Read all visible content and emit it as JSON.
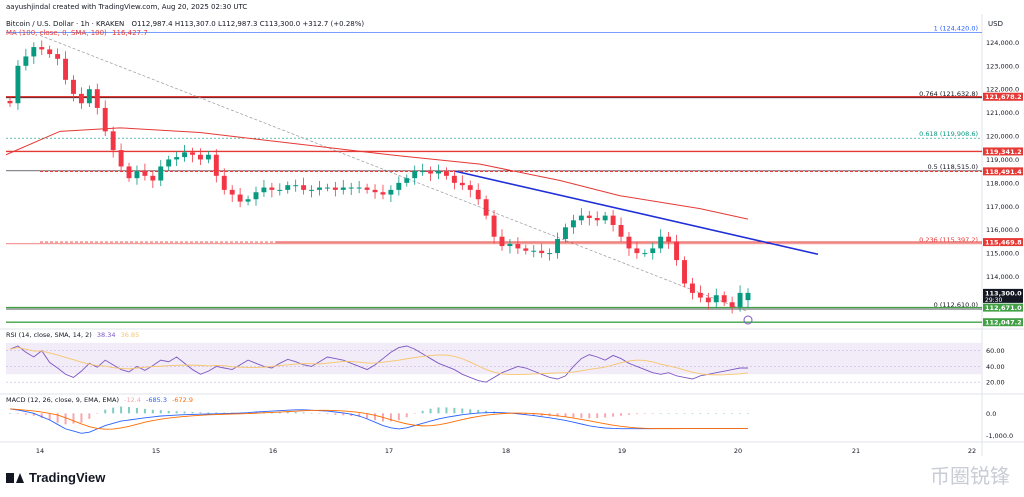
{
  "header": {
    "created_by": "aayushjindal created with TradingView.com, Aug 20, 2025 02:30 UTC",
    "symbol": "Bitcoin / U.S. Dollar · 1h · KRAKEN",
    "ohlc": "O112,987.4  H113,307.0  L112,987.3  C113,300.0  +312.7 (+0.28%)",
    "ma_label": "MA (100, close, 0, SMA, 100)",
    "ma_value": "116,427.7",
    "currency": "USD"
  },
  "indicators": {
    "rsi_label": "RSI (14, close, SMA, 14, 2)",
    "rsi_value": "38.34",
    "rsi_ma_value": "36.85",
    "macd_label": "MACD (12, 26, close, 9, EMA, EMA)",
    "macd_hist": "-12.4",
    "macd_line": "-685.3",
    "macd_signal": "-672.9"
  },
  "branding": {
    "logo_text": "TradingView",
    "watermark": "币圈锐锋"
  },
  "colors": {
    "up": "#089981",
    "down": "#f23645",
    "trend": "#1f2fd8",
    "ma": "#e53935",
    "rsi": "#7e57c2",
    "macd": "#2962ff",
    "signal": "#ff6d00",
    "hline_red": "#e53935",
    "hline_green": "#43a047"
  },
  "chart_data": {
    "type": "candlestick",
    "x_labels": [
      "14",
      "15",
      "16",
      "17",
      "18",
      "19",
      "20",
      "21",
      "22"
    ],
    "ylim": [
      111800,
      124700
    ],
    "y_ticks": [
      {
        "v": 124000,
        "label": "124,000.0"
      },
      {
        "v": 123000,
        "label": "123,000.0"
      },
      {
        "v": 122000,
        "label": "122,000.0"
      },
      {
        "v": 121000,
        "label": "121,000.0"
      },
      {
        "v": 120000,
        "label": "120,000.0"
      },
      {
        "v": 119000,
        "label": "119,000.0"
      },
      {
        "v": 118000,
        "label": "118,000.0"
      },
      {
        "v": 117000,
        "label": "117,000.0"
      },
      {
        "v": 116000,
        "label": "116,000.0"
      },
      {
        "v": 115000,
        "label": "115,000.0"
      },
      {
        "v": 114000,
        "label": "114,000.0"
      }
    ],
    "fib_levels": [
      {
        "label": "1 (124,420.0)",
        "v": 124420,
        "color": "#2962ff"
      },
      {
        "label": "0.764 (121,632.8)",
        "v": 121633,
        "color": "#131722"
      },
      {
        "label": "0.618 (119,908.6)",
        "v": 119909,
        "color": "#089981"
      },
      {
        "label": "0.5 (118,515.0)",
        "v": 118515,
        "color": "#131722"
      },
      {
        "label": "0.236 (115,397.2)",
        "v": 115397,
        "color": "#e53935"
      },
      {
        "label": "0 (112,610.0)",
        "v": 112610,
        "color": "#131722"
      }
    ],
    "price_tags": [
      {
        "label": "121,678.2",
        "v": 121678,
        "color": "#e53935"
      },
      {
        "label": "119,341.2",
        "v": 119341,
        "color": "#e53935"
      },
      {
        "label": "118,491.4",
        "v": 118491,
        "color": "#e53935"
      },
      {
        "label": "115,469.8",
        "v": 115470,
        "color": "#e53935"
      },
      {
        "label": "113,300.0",
        "v": 113300,
        "color": "#131722",
        "sub": "29:30"
      },
      {
        "label": "112,671.0",
        "v": 112671,
        "color": "#43a047"
      },
      {
        "label": "112,047.2",
        "v": 112047,
        "color": "#43a047"
      }
    ],
    "rsi_ticks": [
      {
        "v": 60,
        "label": "60.00"
      },
      {
        "v": 40,
        "label": "40.00"
      },
      {
        "v": 20,
        "label": "20.00"
      }
    ],
    "macd_ticks": [
      {
        "v": 0,
        "label": "0.0"
      },
      {
        "v": -1000,
        "label": "-1,000.0"
      }
    ],
    "candle_closes": [
      121400,
      123000,
      123400,
      123800,
      123700,
      123500,
      123300,
      122400,
      121800,
      121400,
      122000,
      121200,
      120200,
      119400,
      118700,
      118200,
      118500,
      118300,
      118100,
      118700,
      119000,
      119100,
      119300,
      119200,
      119000,
      119200,
      118300,
      117700,
      117500,
      117200,
      117300,
      117600,
      117800,
      117700,
      117700,
      117900,
      117900,
      117700,
      117700,
      117800,
      117800,
      117700,
      117800,
      117800,
      117800,
      117700,
      117600,
      117500,
      117700,
      118000,
      118200,
      118500,
      118500,
      118400,
      118500,
      118300,
      118000,
      117900,
      117700,
      117300,
      116600,
      115700,
      115300,
      115400,
      115200,
      115100,
      115100,
      115000,
      115000,
      115600,
      116100,
      116400,
      116600,
      116500,
      116400,
      116600,
      116200,
      115700,
      115200,
      115000,
      115000,
      115200,
      115700,
      115500,
      114700,
      113700,
      113300,
      113100,
      112900,
      113200,
      112900,
      112700,
      113300,
      113300
    ],
    "candle_opens": [
      121500,
      121400,
      123000,
      123400,
      123800,
      123700,
      123500,
      123300,
      122400,
      121800,
      121400,
      122000,
      121200,
      120200,
      119400,
      118700,
      118200,
      118500,
      118300,
      118100,
      118700,
      119000,
      119100,
      119300,
      119200,
      119000,
      119200,
      118300,
      117700,
      117500,
      117200,
      117300,
      117600,
      117800,
      117700,
      117700,
      117900,
      117900,
      117700,
      117700,
      117800,
      117800,
      117700,
      117800,
      117800,
      117800,
      117700,
      117600,
      117500,
      117700,
      118000,
      118200,
      118500,
      118500,
      118400,
      118500,
      118300,
      118000,
      117900,
      117700,
      117300,
      116600,
      115700,
      115300,
      115400,
      115200,
      115100,
      115100,
      115000,
      115000,
      115600,
      116100,
      116400,
      116600,
      116500,
      116400,
      116600,
      116200,
      115700,
      115200,
      115000,
      115000,
      115200,
      115700,
      115500,
      114700,
      113700,
      113300,
      113100,
      112900,
      113200,
      112900,
      112700,
      112990
    ]
  }
}
